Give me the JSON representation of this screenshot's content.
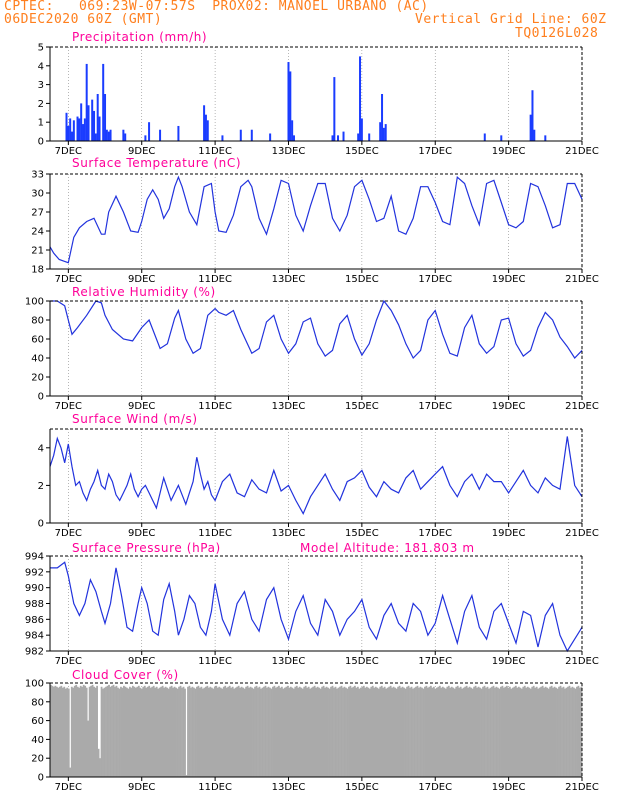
{
  "header": {
    "line1_left": "CPTEC:",
    "line1_coords": "069:23W-07:57S",
    "line1_station": "PROX02: MANOEL URBANO (AC)",
    "line2_left": "06DEC2020 60Z (GMT)",
    "line2_right": "Vertical Grid Line: 60Z",
    "line3_right": "TQ0126L028"
  },
  "x_axis": {
    "ticks": [
      "7DEC",
      "9DEC",
      "11DEC",
      "13DEC",
      "15DEC",
      "17DEC",
      "19DEC",
      "21DEC"
    ]
  },
  "chart_data": [
    {
      "type": "bar",
      "title": "Precipitation (mm/h)",
      "ylim": [
        0,
        5
      ],
      "yticks": [
        "0",
        "1",
        "2",
        "3",
        "4",
        "5"
      ],
      "color": "#1a3cff",
      "x_days": [
        6.95,
        7.0,
        7.05,
        7.1,
        7.15,
        7.25,
        7.3,
        7.35,
        7.4,
        7.45,
        7.5,
        7.55,
        7.65,
        7.7,
        7.75,
        7.8,
        7.85,
        7.95,
        8.0,
        8.05,
        8.1,
        8.15,
        8.5,
        8.55,
        9.1,
        9.2,
        9.5,
        10.0,
        10.7,
        10.75,
        10.8,
        11.2,
        11.7,
        12.0,
        12.5,
        13.0,
        13.05,
        13.1,
        13.15,
        14.2,
        14.25,
        14.35,
        14.5,
        14.9,
        14.95,
        15.0,
        15.2,
        15.5,
        15.55,
        15.6,
        15.65,
        18.35,
        18.8,
        19.6,
        19.65,
        19.7,
        20.0
      ],
      "values": [
        1.5,
        0.8,
        1.2,
        0.5,
        1.1,
        1.3,
        1.2,
        2.0,
        0.9,
        1.2,
        4.1,
        1.9,
        2.2,
        1.6,
        0.4,
        2.5,
        1.3,
        4.1,
        2.5,
        0.6,
        0.5,
        0.6,
        0.6,
        0.4,
        0.3,
        1.0,
        0.6,
        0.8,
        1.9,
        1.4,
        1.1,
        0.3,
        0.6,
        0.6,
        0.4,
        4.2,
        3.7,
        1.1,
        0.3,
        0.3,
        3.4,
        0.3,
        0.5,
        0.4,
        4.5,
        1.2,
        0.4,
        1.0,
        2.5,
        0.7,
        0.9,
        0.4,
        0.3,
        1.4,
        2.7,
        0.6,
        0.3
      ]
    },
    {
      "type": "line",
      "title": "Surface Temperature (nC)",
      "ylim": [
        18,
        33
      ],
      "yticks": [
        "18",
        "21",
        "24",
        "27",
        "30",
        "33"
      ],
      "color": "#2233dd",
      "x": [
        6.5,
        6.6,
        6.75,
        6.9,
        7.0,
        7.15,
        7.3,
        7.5,
        7.7,
        7.9,
        8.0,
        8.1,
        8.3,
        8.5,
        8.7,
        8.9,
        9.0,
        9.15,
        9.3,
        9.45,
        9.6,
        9.75,
        9.9,
        10.0,
        10.1,
        10.3,
        10.5,
        10.7,
        10.9,
        11.0,
        11.1,
        11.3,
        11.5,
        11.7,
        11.9,
        12.0,
        12.2,
        12.4,
        12.6,
        12.8,
        13.0,
        13.2,
        13.4,
        13.6,
        13.8,
        14.0,
        14.2,
        14.4,
        14.6,
        14.8,
        15.0,
        15.2,
        15.4,
        15.6,
        15.8,
        16.0,
        16.2,
        16.4,
        16.6,
        16.8,
        17.0,
        17.2,
        17.4,
        17.6,
        17.8,
        18.0,
        18.2,
        18.4,
        18.6,
        18.8,
        19.0,
        19.2,
        19.4,
        19.6,
        19.8,
        20.0,
        20.2,
        20.4,
        20.6,
        20.8,
        21.0
      ],
      "values": [
        21.5,
        20.5,
        19.5,
        19.2,
        19.0,
        23.0,
        24.5,
        25.5,
        26.0,
        23.5,
        23.5,
        27.0,
        29.5,
        27.0,
        24.0,
        23.8,
        25.5,
        29.0,
        30.5,
        29.0,
        26.0,
        27.5,
        31.0,
        32.5,
        31.0,
        27.0,
        25.0,
        31.0,
        31.5,
        27.0,
        24.0,
        23.8,
        26.5,
        31.0,
        32.0,
        31.0,
        26.0,
        23.5,
        27.5,
        32.0,
        31.5,
        26.5,
        24.0,
        28.0,
        31.5,
        31.5,
        26.0,
        24.0,
        26.5,
        31.0,
        32.0,
        29.0,
        25.5,
        26.0,
        29.5,
        24.0,
        23.5,
        26.0,
        31.0,
        31.0,
        28.5,
        25.5,
        25.0,
        32.5,
        31.5,
        28.0,
        25.0,
        31.5,
        32.0,
        28.5,
        25.0,
        24.5,
        25.5,
        31.5,
        31.0,
        28.0,
        24.5,
        25.0,
        31.5,
        31.5,
        29.0
      ]
    },
    {
      "type": "line",
      "title": "Relative Humidity (%)",
      "ylim": [
        0,
        100
      ],
      "yticks": [
        "0",
        "20",
        "40",
        "60",
        "80",
        "100"
      ],
      "color": "#2233dd",
      "x": [
        6.5,
        6.7,
        6.9,
        7.0,
        7.1,
        7.25,
        7.5,
        7.75,
        7.9,
        8.0,
        8.2,
        8.5,
        8.75,
        9.0,
        9.2,
        9.5,
        9.7,
        9.9,
        10.0,
        10.2,
        10.4,
        10.6,
        10.8,
        11.0,
        11.1,
        11.3,
        11.5,
        11.7,
        12.0,
        12.2,
        12.4,
        12.6,
        12.8,
        13.0,
        13.2,
        13.4,
        13.6,
        13.8,
        14.0,
        14.2,
        14.4,
        14.6,
        14.8,
        15.0,
        15.2,
        15.4,
        15.6,
        15.8,
        16.0,
        16.2,
        16.4,
        16.6,
        16.8,
        17.0,
        17.2,
        17.4,
        17.6,
        17.8,
        18.0,
        18.2,
        18.4,
        18.6,
        18.8,
        19.0,
        19.2,
        19.4,
        19.6,
        19.8,
        20.0,
        20.2,
        20.4,
        20.6,
        20.8,
        21.0
      ],
      "values": [
        100,
        100,
        95,
        80,
        65,
        72,
        85,
        100,
        98,
        85,
        70,
        60,
        58,
        72,
        80,
        50,
        55,
        82,
        90,
        60,
        45,
        50,
        85,
        92,
        88,
        85,
        90,
        70,
        45,
        50,
        78,
        85,
        60,
        45,
        55,
        78,
        82,
        55,
        42,
        48,
        76,
        85,
        60,
        43,
        55,
        80,
        100,
        90,
        75,
        55,
        40,
        48,
        80,
        90,
        65,
        45,
        42,
        72,
        85,
        55,
        45,
        52,
        80,
        82,
        55,
        42,
        48,
        72,
        88,
        80,
        62,
        52,
        40,
        48
      ]
    },
    {
      "type": "line",
      "title": "Surface Wind (m/s)",
      "ylim": [
        0,
        5
      ],
      "yticks": [
        "0",
        "2",
        "4"
      ],
      "color": "#2233dd",
      "x": [
        6.5,
        6.6,
        6.7,
        6.8,
        6.9,
        7.0,
        7.1,
        7.2,
        7.3,
        7.4,
        7.5,
        7.6,
        7.7,
        7.8,
        7.9,
        8.0,
        8.1,
        8.2,
        8.3,
        8.4,
        8.5,
        8.6,
        8.7,
        8.8,
        8.9,
        9.0,
        9.1,
        9.2,
        9.3,
        9.4,
        9.5,
        9.6,
        9.7,
        9.8,
        9.9,
        10.0,
        10.1,
        10.2,
        10.3,
        10.4,
        10.5,
        10.6,
        10.7,
        10.8,
        10.9,
        11.0,
        11.2,
        11.4,
        11.6,
        11.8,
        12.0,
        12.2,
        12.4,
        12.6,
        12.8,
        13.0,
        13.2,
        13.4,
        13.6,
        13.8,
        14.0,
        14.2,
        14.4,
        14.6,
        14.8,
        15.0,
        15.2,
        15.4,
        15.6,
        15.8,
        16.0,
        16.2,
        16.4,
        16.6,
        16.8,
        17.0,
        17.2,
        17.4,
        17.6,
        17.8,
        18.0,
        18.2,
        18.4,
        18.6,
        18.8,
        19.0,
        19.2,
        19.4,
        19.6,
        19.8,
        20.0,
        20.2,
        20.4,
        20.6,
        20.8,
        21.0
      ],
      "values": [
        3.0,
        3.6,
        4.5,
        4.0,
        3.2,
        4.2,
        3.0,
        2.0,
        2.2,
        1.6,
        1.2,
        1.8,
        2.2,
        2.8,
        2.0,
        1.8,
        2.6,
        2.2,
        1.5,
        1.2,
        1.6,
        2.0,
        2.6,
        1.8,
        1.4,
        1.8,
        2.0,
        1.6,
        1.2,
        0.8,
        1.6,
        2.4,
        1.8,
        1.2,
        1.6,
        2.0,
        1.5,
        1.0,
        1.6,
        2.2,
        3.5,
        2.6,
        1.8,
        2.2,
        1.5,
        1.2,
        2.2,
        2.6,
        1.6,
        1.4,
        2.3,
        1.8,
        1.6,
        2.8,
        1.7,
        2.0,
        1.2,
        0.5,
        1.4,
        2.0,
        2.6,
        1.8,
        1.2,
        2.2,
        2.4,
        2.8,
        1.9,
        1.4,
        2.2,
        1.8,
        1.6,
        2.4,
        2.8,
        1.8,
        2.2,
        2.6,
        3.0,
        2.0,
        1.4,
        2.2,
        2.6,
        1.8,
        2.6,
        2.2,
        2.2,
        1.6,
        2.2,
        2.8,
        2.0,
        1.6,
        2.4,
        2.0,
        1.8,
        4.6,
        2.0,
        1.4
      ]
    },
    {
      "type": "line",
      "title": "Surface Pressure (hPa)",
      "annotation": "Model Altitude: 181.803 m",
      "ylim": [
        982,
        994
      ],
      "yticks": [
        "982",
        "984",
        "986",
        "988",
        "990",
        "992",
        "994"
      ],
      "color": "#2233dd",
      "x": [
        6.5,
        6.7,
        6.9,
        7.0,
        7.15,
        7.3,
        7.45,
        7.6,
        7.75,
        7.9,
        8.0,
        8.15,
        8.3,
        8.45,
        8.6,
        8.75,
        8.9,
        9.0,
        9.15,
        9.3,
        9.45,
        9.6,
        9.75,
        9.9,
        10.0,
        10.15,
        10.3,
        10.45,
        10.6,
        10.75,
        10.9,
        11.0,
        11.2,
        11.4,
        11.6,
        11.8,
        12.0,
        12.2,
        12.4,
        12.6,
        12.8,
        13.0,
        13.2,
        13.4,
        13.6,
        13.8,
        14.0,
        14.2,
        14.4,
        14.6,
        14.8,
        15.0,
        15.2,
        15.4,
        15.6,
        15.8,
        16.0,
        16.2,
        16.4,
        16.6,
        16.8,
        17.0,
        17.2,
        17.4,
        17.6,
        17.8,
        18.0,
        18.2,
        18.4,
        18.6,
        18.8,
        19.0,
        19.2,
        19.4,
        19.6,
        19.8,
        20.0,
        20.2,
        20.4,
        20.6,
        20.8,
        21.0
      ],
      "values": [
        992.5,
        992.5,
        993.2,
        991.5,
        988.0,
        986.5,
        988.0,
        991.0,
        989.5,
        987.0,
        985.5,
        988.0,
        992.5,
        989.0,
        985.0,
        984.5,
        988.0,
        990.0,
        988.0,
        984.5,
        984.0,
        988.5,
        990.5,
        987.0,
        984.0,
        986.0,
        989.0,
        988.0,
        985.0,
        984.0,
        987.0,
        990.5,
        986.0,
        984.0,
        988.0,
        989.5,
        986.0,
        984.5,
        988.5,
        990.0,
        986.0,
        983.5,
        987.0,
        989.0,
        985.5,
        984.0,
        988.5,
        987.0,
        984.0,
        986.0,
        987.0,
        988.5,
        985.0,
        983.5,
        986.5,
        988.0,
        985.5,
        984.5,
        988.0,
        987.0,
        984.0,
        985.5,
        989.0,
        986.0,
        983.0,
        987.0,
        989.0,
        985.0,
        983.5,
        987.0,
        988.0,
        985.5,
        983.0,
        987.0,
        986.5,
        982.5,
        986.5,
        988.0,
        984.0,
        982.0,
        983.5,
        985.0
      ]
    },
    {
      "type": "bar",
      "title": "Cloud Cover (%)",
      "ylim": [
        0,
        100
      ],
      "yticks": [
        "0",
        "20",
        "40",
        "60",
        "80",
        "100"
      ],
      "color": "#aaaaaa",
      "x_start_day": 6.5,
      "x_step_day": 0.0417,
      "values": [
        98,
        97,
        96,
        97,
        96,
        95,
        96,
        97,
        95,
        96,
        94,
        95,
        94,
        10,
        96,
        95,
        97,
        98,
        96,
        95,
        97,
        96,
        98,
        97,
        95,
        60,
        96,
        97,
        98,
        96,
        95,
        97,
        30,
        20,
        96,
        94,
        95,
        96,
        97,
        98,
        96,
        97,
        98,
        96,
        97,
        95,
        94,
        96,
        95,
        97,
        96,
        95,
        94,
        96,
        95,
        97,
        96,
        95,
        96,
        97,
        95,
        94,
        96,
        97,
        95,
        96,
        97,
        95,
        96,
        97,
        95,
        96,
        94,
        95,
        96,
        97,
        95,
        96,
        95,
        94,
        96,
        97,
        95,
        96,
        95,
        94,
        96,
        97,
        95,
        96,
        94,
        2,
        96,
        97,
        95,
        96,
        95,
        94,
        96,
        97,
        95,
        96,
        94,
        95,
        96,
        97,
        95,
        96,
        95,
        94,
        96,
        97,
        95,
        96,
        95,
        94,
        96,
        97,
        95,
        96,
        97,
        95,
        96,
        94,
        95,
        96,
        97,
        95,
        96,
        95,
        94,
        96,
        97,
        95,
        96,
        95,
        94,
        96,
        97,
        95,
        96,
        94,
        95,
        96,
        97,
        95,
        96,
        95,
        94,
        96,
        97,
        95,
        96,
        97,
        95,
        96,
        94,
        95,
        96,
        97,
        95,
        96,
        95,
        94,
        96,
        97,
        95,
        96,
        95,
        94,
        96,
        97,
        95,
        96,
        94,
        95,
        96,
        97,
        95,
        96,
        95,
        94,
        96,
        97,
        95,
        96,
        95,
        94,
        96,
        97,
        95,
        96,
        94,
        95,
        96,
        97,
        95,
        96,
        95,
        94,
        96,
        97,
        95,
        96,
        97,
        95,
        96,
        94,
        95,
        96,
        97,
        95,
        96,
        95,
        94,
        96,
        97,
        95,
        96,
        95,
        94,
        96,
        97,
        95,
        96,
        94,
        95,
        96,
        97,
        95,
        96,
        95,
        94,
        96,
        97,
        95,
        96,
        95,
        94,
        96,
        97,
        95,
        96,
        94,
        95,
        96,
        97,
        95,
        96,
        95,
        94,
        96,
        97,
        95,
        96,
        97,
        95,
        96,
        94,
        95,
        96,
        97,
        95,
        96,
        95,
        94,
        96,
        97,
        95,
        96,
        95,
        94,
        96,
        97,
        95,
        96,
        94,
        95,
        96,
        97,
        95,
        96,
        95,
        94,
        96,
        97,
        95,
        96,
        95,
        94,
        96,
        97,
        95,
        96,
        94,
        95,
        96,
        97,
        95,
        96,
        95,
        94,
        96,
        97,
        95,
        96,
        97,
        95,
        96,
        94,
        95,
        96,
        97,
        95,
        96,
        95,
        94,
        96,
        97,
        95,
        96,
        95,
        94,
        96,
        97,
        95,
        96,
        94,
        95,
        96,
        97,
        95,
        96,
        95,
        94,
        96,
        97,
        95,
        96,
        95,
        94,
        96,
        97,
        95,
        96,
        94,
        95,
        96,
        97,
        95,
        96,
        95,
        94,
        96,
        97,
        95,
        96
      ]
    }
  ]
}
